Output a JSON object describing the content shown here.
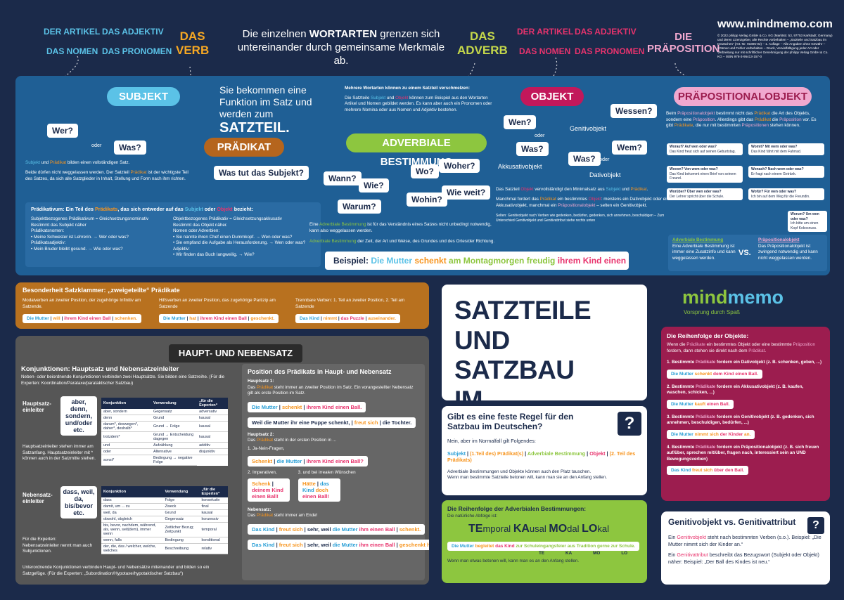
{
  "header": {
    "nav_left": [
      "DER ARTIKEL",
      "DAS ADJEKTIV",
      "DAS NOMEN",
      "DAS PRONOMEN"
    ],
    "verb": [
      "DAS",
      "VERB"
    ],
    "intro": [
      "Die einzelnen ",
      "WORTARTEN",
      " grenzen sich untereinander durch gemeinsame Merkmale ab."
    ],
    "adverb": [
      "DAS",
      "ADVERB"
    ],
    "nav_right": [
      "DER ARTIKEL",
      "DAS ADJEKTIV",
      "DAS NOMEN",
      "DAS PRONOMEN"
    ],
    "praeposition": [
      "DIE",
      "PRÄPOSITION"
    ],
    "url": "www.mindmemo.com",
    "copyright": "© 2022 philipp Verlag GmbH & Co. KG (Marktstr. 53, 97753 Karlstadt; Germany) und deren Lizenzgeber, alle Rechte vorbehalten – „Satzteile und Satzbau im Deutschen“ (Art.-Nr. 91805-02) – 1. Auflage – Alle Angaben ohne Gewähr – Irrtümer und Fehler vorbehalten – Druck, Vervielfältigung jeder Art oder Verbreitung nur mit schriftlicher Genehmigung der philipp Verlag GmbH & Co. KG – ISBN 978-3-95413-157-0"
  },
  "satzteil": {
    "intro": "Sie bekommen eine Funktion im Satz und werden zum",
    "intro_big": "SATZTEIL.",
    "subjekt": {
      "label": "SUBJEKT",
      "q1": "Wer?",
      "oder": "oder",
      "q2": "Was?",
      "text1": [
        "Subjekt",
        " und ",
        "Prädikat",
        " bilden einen vollständigen Satz."
      ],
      "text2": [
        "Beide dürfen nicht weggelassen werden. Der Satzteil ",
        "Prädikat",
        " ist der wichtigste Teil des Satzes, da sich alle Satzglieder in Inhalt, Stellung und Form nach ihm richten."
      ]
    },
    "praedikat": {
      "label": "PRÄDIKAT",
      "q": "Was tut das Subjekt?"
    },
    "praedikativ": {
      "title": [
        "Prädikativum: Ein Teil des ",
        "Prädikats",
        ", das sich entweder auf das ",
        "Subjekt",
        " oder ",
        "Objekt",
        " bezieht:"
      ],
      "left": [
        "Subjektbezogenes Prädikativum = Gleichsetzungsnominativ",
        "Bestimmt das Subjekt näher",
        "Prädikatsnomen:",
        "• Meine Schwester ist Lehrerin. → Wer oder was?",
        "Prädikatsadjektiv:",
        "• Mein Bruder bleibt gesund. → Wie oder was?"
      ],
      "right": [
        "Objektbezogenes Prädikativ = Gleichsetzungsakkusativ",
        "Bestimmt das Objekt näher.",
        "Nomen oder Adverbien:",
        "• Sie nannte ihren Chef einen Dummkopf. → Wen oder was?",
        "• Sie empfand die Aufgabe als Herausforderung. → Wen oder was?",
        "Adjektiv:",
        "• Wir finden das Buch langweilig. → Wie?"
      ]
    },
    "adverbiale": {
      "note_title": "Mehrere Wortarten können zu einem Satzteil verschmelzen:",
      "note": [
        "Die Satzteile ",
        "Subjekt",
        " und ",
        "Objekt",
        " können zum Beispiel aus den Wortarten Artikel und Nomen gebildet werden. Es kann aber auch ein Pronomen oder mehrere Nomina oder aus Nomen und Adjektiv bestehen."
      ],
      "label": "ADVERBIALE BESTIMMUNG",
      "questions": [
        "Wann?",
        "Wie?",
        "Warum?",
        "Wo?",
        "Woher?",
        "Wohin?",
        "Wie weit?"
      ],
      "text1": [
        "Eine ",
        "Adverbiale Bestimmung",
        " ist für das Verständnis eines Satzes nicht unbedingt notwendig, kann also weggelassen werden."
      ],
      "text2": [
        "Adverbiale Bestimmung",
        " der Zeit, der Art und Weise, des Grundes und des Ortes/der Richtung."
      ]
    },
    "beispiel": [
      "Beispiel: ",
      "Die Mutter",
      " schenkt",
      " am Montagmorgen freudig",
      " ihrem Kind einen Ball."
    ],
    "objekt": {
      "label": "OBJEKT",
      "wen": "Wen?",
      "oder1": "oder",
      "was1": "Was?",
      "akk": "Akkusativobjekt",
      "wessen": "Wessen?",
      "gen": "Genitivobjekt",
      "wem": "Wem?",
      "oder2": "oder",
      "was2": "Was?",
      "dat": "Dativobjekt",
      "text1": [
        "Das Satzteil ",
        "Objekt",
        " vervollständigt den Minimalsatz aus ",
        "Subjekt",
        " und ",
        "Prädikat",
        "."
      ],
      "text2": [
        "Manchmal fordert das ",
        "Prädikat",
        " ein bestimmtes ",
        "Objekt",
        ": meistens ein Dativobjekt oder ein Akkusativobjekt, manchmal ein ",
        "Präpositionalobjekt",
        " – selten ein Genitivobjekt."
      ],
      "text3": "Selten: Genitivobjekt nach Verben wie gedenken, bedürfen, gedenken, sich annehmen, beschuldigen – Zum Unterschied Genitivobjekt und Genitivattribut siehe rechts unten"
    },
    "praepositional": {
      "label": "PRÄPOSITIONALOBJEKT",
      "text": [
        "Beim ",
        "Präpositionalobjekt",
        " bestimmt nicht das ",
        "Prädikat",
        " die Art des Objekts, sondern eine ",
        "Präposition",
        ". Allerdings gibt das ",
        "Prädikat",
        " die ",
        "Präposition",
        " vor. Es gibt ",
        "Prädikate",
        ", die nur mit bestimmten ",
        "Präpositionen",
        " stehen können."
      ],
      "bubbles": [
        [
          "Worauf? Auf wen oder was?",
          "Das Kind freut sich auf seinen Geburtstag."
        ],
        [
          "Womit? Mit wem oder was?",
          "Das Kind fährt mit dem Fahrrad."
        ],
        [
          "Wovon? Von wem oder was?",
          "Das Kind bekommt einen Brief von seinem Freund."
        ],
        [
          "Wonach? Nach wem oder was?",
          "Er fragt nach einem Getränk."
        ],
        [
          "Worüber? Über wen oder was?",
          "Der Lehrer spricht über die Schule."
        ],
        [
          "Wofür? Für wen oder was?",
          "Ich bin auf dem Weg für die Freundin."
        ],
        [
          "Worum? Um wen oder was?",
          "Ich bitte um einen Kopf Kokosnuss."
        ]
      ],
      "cmp_left_title": "Adverbiale Bestimmung",
      "cmp_left": "Eine Adverbiale Bestimmung ist immer eine Zusatzinfo und kann weggelassen werden.",
      "vs": "VS.",
      "cmp_right_title": "Präpositionalobjekt",
      "cmp_right": "Das Präpositionalobjekt ist zwingend notwendig und kann nicht weggelassen werden."
    }
  },
  "satzklammer": {
    "title": "Besonderheit Satzklammer: „zweigeteilte“ Prädikate",
    "cols": [
      {
        "desc": "Modalverben an zweiter Position, der zugehörige Infinitiv am Satzende.",
        "ex": [
          "Die Mutter",
          " | ",
          "will",
          " | ",
          "ihrem Kind einen Ball",
          " | ",
          "schenken."
        ]
      },
      {
        "desc": "Hilfsverben an zweiter Position, das zugehörige Partizip am Satzende",
        "ex": [
          "Die Mutter",
          " | ",
          "hat",
          " | ",
          "ihrem Kind einen Ball",
          " | ",
          "geschenkt."
        ]
      },
      {
        "desc": "Trennbare Verben: 1. Teil an zweiter Position, 2. Teil am Satzende",
        "ex": [
          "Das Kind",
          " | ",
          "nimmt",
          " | ",
          "das Puzzle",
          " | ",
          "auseinander."
        ]
      }
    ]
  },
  "hauptneben": {
    "title": "HAUPT- UND NEBENSATZ",
    "left": {
      "title": "Konjunktionen: Hauptsatz und Nebensatzeinleiter",
      "desc": "Neben- oder beiordnende Konjunktionen verbinden zwei Hauptsätze. Sie bilden eine Satzreihe. (Für die Experten: Koordination/Parataxe/parataktischer Satzbau)",
      "haupt_label": "Hauptsatz-einleiter",
      "haupt_bubble": "aber, denn, sondern, und/oder etc.",
      "table_head": [
        "Konjunktion",
        "Verwendung",
        "„für die Experten“"
      ],
      "haupt_rows": [
        [
          "aber, sondern",
          "Gegensatz",
          "adversativ"
        ],
        [
          "denn",
          "Grund",
          "kausal"
        ],
        [
          "darum*, deswegen*, daher*, deshalb*",
          "Grund → Folge",
          "kausal"
        ],
        [
          "trotzdem*",
          "Grund → Entscheidung dagegen",
          "kausal"
        ],
        [
          "und",
          "Aufzählung",
          "additiv"
        ],
        [
          "oder",
          "Alternative",
          "disjunktiv"
        ],
        [
          "sonst*",
          "Bedingung → negative Folge"
        ]
      ],
      "haupt_note": "Hauptsatzeinleiter stehen immer am Satzanfang. Hauptsatzeinleiter mit * können auch in der Satzmitte stehen.",
      "neben_label": "Nebensatz-einleiter",
      "neben_bubble": "dass, weil, da, bis/bevor etc.",
      "neben_rows": [
        [
          "dass",
          "Folge",
          "konsekutiv"
        ],
        [
          "damit, um ... zu",
          "Zweck",
          "final"
        ],
        [
          "weil, da",
          "Grund",
          "kausal"
        ],
        [
          "obwohl, obgleich",
          "Gegensatz",
          "konzessiv"
        ],
        [
          "bis, bevor, nachdem, während, als, wenn, seit(dem), immer wenn",
          "Zeitlicher Bezug; Zeitpunkt",
          "temporal"
        ],
        [
          "wenn, falls",
          "Bedingung",
          "konditional"
        ],
        [
          "der, die, das / welcher, welche, welches",
          "Beschreibung",
          "relativ"
        ]
      ],
      "neben_note": "Für die Experten: Nebensatzeinleiter nennt man auch Subjunktionen.",
      "foot": "Unterordnende Konjunktionen verbinden Haupt- und Nebensätze miteinander und bilden so ein Satzgefüge. (Für die Experten: „Subordination/Hypotaxe/hypotaktischer Satzbau“)"
    },
    "right": {
      "title": "Position des Prädikats in Haupt- und Nebensatz",
      "h1": "Hauptsatz 1:",
      "h1_text": [
        "Das ",
        "Prädikat",
        " steht immer an zweiter Position im Satz. Ein vorangestellter Nebensatz gilt als erste Position im Satz."
      ],
      "ex1": [
        "Die Mutter",
        " | ",
        "schenkt",
        " | ",
        "ihrem Kind einen Ball."
      ],
      "ex2": [
        "Weil die Mutter ihr eine Puppe schenkt,",
        " | ",
        "freut sich",
        " | ",
        "die Tochter."
      ],
      "h2": "Hauptsatz 2:",
      "h2_text": [
        "Das ",
        "Prädikat",
        " steht in der ersten Position in ..."
      ],
      "i1": "1. Ja-Nein-Fragen,",
      "ex3": [
        "Schenkt",
        " | ",
        "die Mutter",
        " | ",
        "ihrem Kind einen Ball?"
      ],
      "i2": "2. Imperativen,",
      "i3": "3. und bei irrealen Wünschen",
      "ex4": [
        "Schenk",
        " | ",
        "deinem Kind einen Ball!"
      ],
      "ex5": [
        "Hätte",
        " | ",
        "das Kind",
        " doch ",
        "einen Ball!"
      ],
      "n": "Nebensatz:",
      "n_text": [
        "Das ",
        "Prädikat",
        " steht immer am Ende!"
      ],
      "ex6": [
        "Das Kind",
        " | ",
        "freut sich",
        " | ",
        "sehr, weil ",
        "die Mutter",
        " ihm einen Ball",
        " | ",
        "schenkt."
      ],
      "ex7": [
        "Das Kind",
        " | ",
        "freut sich",
        " | ",
        "sehr, weil ",
        "die Mutter",
        " ihm einen Ball",
        " | ",
        "geschenkt hat."
      ]
    }
  },
  "title_box": {
    "lines": [
      "SATZTEILE",
      "UND SATZBAU",
      "IM DEUTSCHEN"
    ]
  },
  "logo": {
    "name": [
      "mind",
      "memo"
    ],
    "tagline": "Vorsprung durch Spaß"
  },
  "regel": {
    "question": "Gibt es eine feste Regel für den Satzbau im Deutschen?",
    "icon": "?",
    "answer": "Nein, aber im Normalfall gilt Folgendes:",
    "order": [
      "Subjekt",
      " | ",
      "(1.Teil des) Prädikat(s)",
      " | ",
      "Adverbiale Bestimmung",
      " | ",
      "Objekt",
      " | ",
      "(2. Teil des Prädikats)"
    ],
    "bullets": [
      "Adverbiale Bestimmungen und Objekte können auch den Platz tauschen.",
      "Wenn man bestimmte Satzteile betonen will, kann man sie an den Anfang stellen."
    ]
  },
  "adv_order": {
    "title": "Die Reihenfolge der Adverbialen Bestimmungen:",
    "note": "Die natürliche Abfolge ist:",
    "tekamolo": [
      "TE",
      "mporal ",
      "KA",
      "usal ",
      "MO",
      "dal ",
      "LO",
      "kal"
    ],
    "example": [
      "Die Mutter",
      " begleitet ",
      "das Kind",
      " zur Schuleingangsfeier",
      " aus Tradition",
      " gerne",
      " zur Schule."
    ],
    "markers": [
      "TE",
      "KA",
      "MO",
      "LO"
    ],
    "note2": "Wenn man etwas betonen will, kann man es an den Anfang stellen."
  },
  "obj_order": {
    "title": "Die Reihenfolge der Objekte:",
    "intro": [
      "Wenn die ",
      "Prädikate",
      " ein bestimmtes Objekt oder eine bestimmte ",
      "Präposition",
      " fordern, dann stehen sie direkt nach dem ",
      "Prädikat",
      "."
    ],
    "items": [
      {
        "text": [
          "1. Bestimmte ",
          "Prädikate",
          " fordern ein Dativobjekt (z. B. schenken, geben, ...)"
        ],
        "ex": [
          "Die Mutter ",
          "schenkt ",
          "dem Kind ",
          "einen Ball."
        ]
      },
      {
        "text": [
          "2. Bestimmte ",
          "Prädikate",
          " fordern ein Akkusativobjekt (z. B. kaufen, waschen, schicken, ...)"
        ],
        "ex": [
          "Die Mutter ",
          "kauft ",
          "einen Ball."
        ]
      },
      {
        "text": [
          "3. Bestimmte ",
          "Prädikate",
          " fordern ein Genitivobjekt (z. B. gedenken, sich annehmen, beschuldigen, bedürfen, ...)"
        ],
        "ex": [
          "Die Mutter ",
          "nimmt sich ",
          "der Kinder ",
          "an."
        ]
      },
      {
        "text": [
          "4. Bestimmte ",
          "Prädikate",
          " fordern ein Präpositionalobjekt (z. B. sich freuen auf/über, sprechen mit/über, fragen nach, interessiert sein an UND Bewegungsverben)"
        ],
        "ex": [
          "Das Kind ",
          "freut sich ",
          "über den Ball."
        ]
      }
    ]
  },
  "genitiv": {
    "title": [
      "Genitivobjekt",
      " vs. ",
      "Genitivattribut"
    ],
    "icon": "?",
    "p1": [
      "Ein ",
      "Genitivobjekt",
      " steht nach bestimmten Verben (s.o.). Beispiel: „Die Mutter nimmt sich der Kinder an.“"
    ],
    "p2": [
      "Ein ",
      "Genitivattribut",
      " beschreibt das Bezugswort (Subjekt oder Objekt) näher: Beispiel: „Der Ball des Kindes ist neu.“"
    ]
  }
}
